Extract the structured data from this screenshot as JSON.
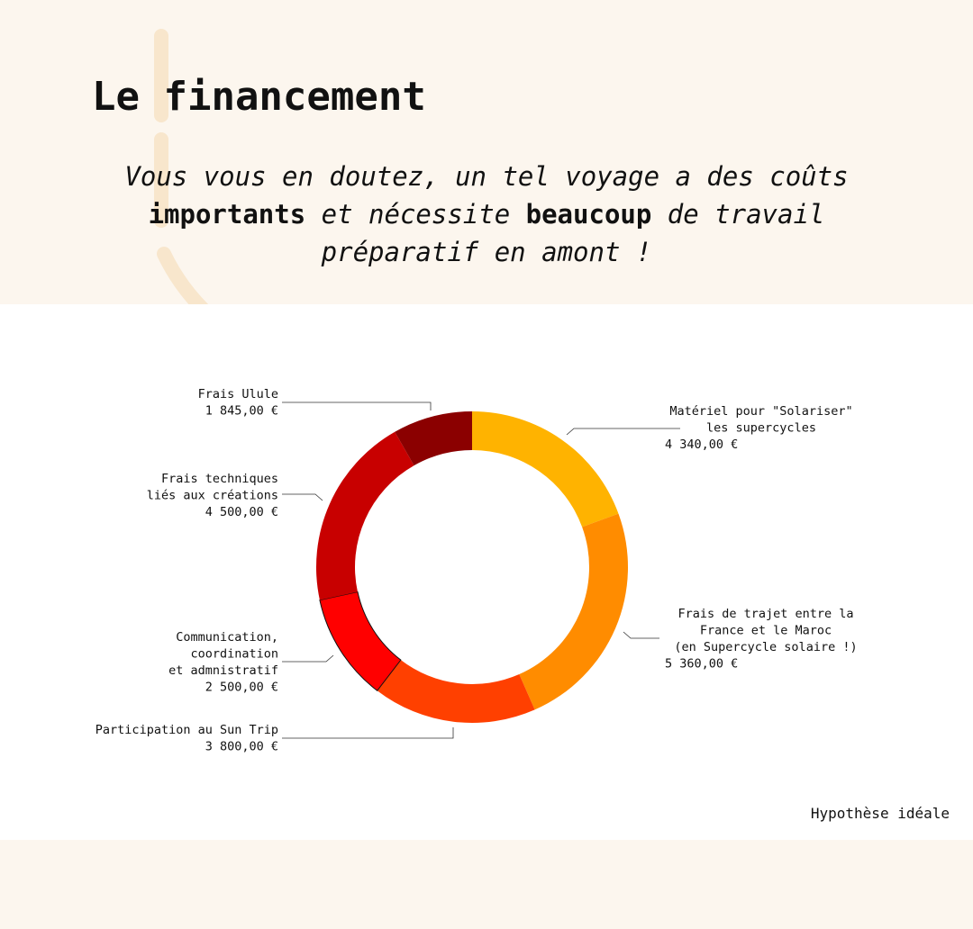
{
  "header": {
    "title": "Le financement",
    "intro_1": "Vous vous en doutez, un tel voyage a des coûts ",
    "intro_bold_1": "importants",
    "intro_2": " et nécessite ",
    "intro_bold_2": "beaucoup",
    "intro_3": " de travail préparatif en amont !"
  },
  "colors": {
    "background": "#fcf6ee",
    "decoration": "#f8e6cc"
  },
  "chart_data": {
    "type": "pie",
    "variant": "donut",
    "unit": "€",
    "slices": [
      {
        "lines": [
          "Matériel pour \"Solariser\"",
          "les supercycles"
        ],
        "value": 4340,
        "value_label": "4 340,00 €",
        "color": "#ffb300"
      },
      {
        "lines": [
          "Frais de trajet entre la",
          "France et le Maroc",
          "(en Supercycle solaire !)"
        ],
        "value": 5360,
        "value_label": "5 360,00 €",
        "color": "#ff8c00"
      },
      {
        "lines": [
          "Participation au Sun Trip"
        ],
        "value": 3800,
        "value_label": "3 800,00 €",
        "color": "#ff4000"
      },
      {
        "lines": [
          "Communication,",
          "coordination",
          "et admnistratif"
        ],
        "value": 2500,
        "value_label": "2 500,00 €",
        "color": "#ff0000"
      },
      {
        "lines": [
          "Frais techniques",
          "liés aux créations"
        ],
        "value": 4500,
        "value_label": "4 500,00 €",
        "color": "#c80000"
      },
      {
        "lines": [
          "Frais Ulule"
        ],
        "value": 1845,
        "value_label": "1 845,00 €",
        "color": "#8b0000"
      }
    ],
    "note": "Hypothèse idéale"
  }
}
